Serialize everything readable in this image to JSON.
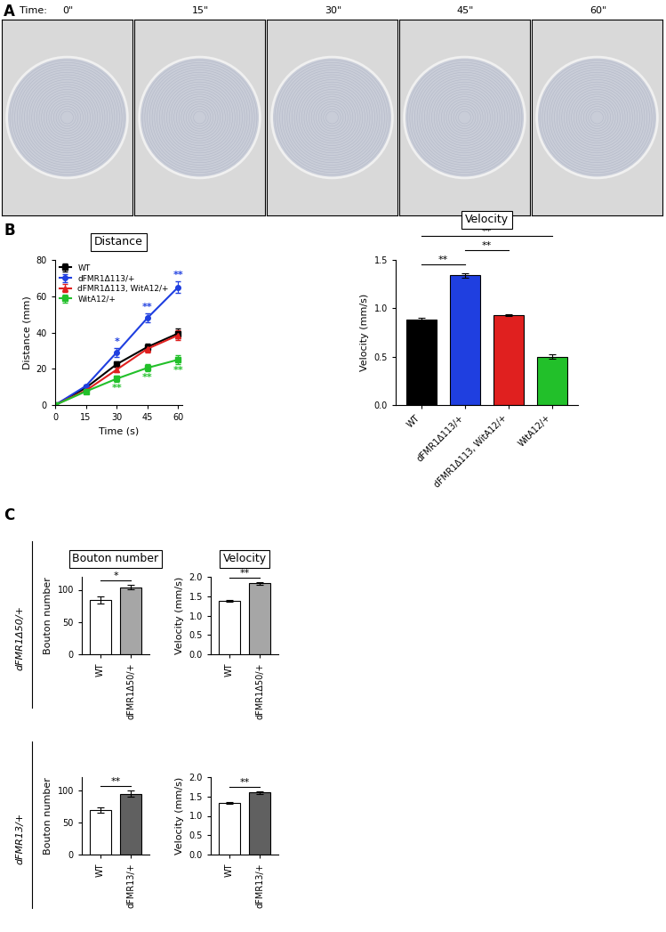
{
  "panel_labels": [
    "A",
    "B",
    "C"
  ],
  "panel_a": {
    "time_label": "Time:",
    "frames": [
      "0\"",
      "15\"",
      "30\"",
      "45\"",
      "60\""
    ]
  },
  "row_labels": [
    "dFMR1Δ50/+",
    "dFMR13/+"
  ],
  "chart_data": [
    {
      "type": "line",
      "title": "Distance",
      "xlabel": "Time (s)",
      "ylabel": "Distance (mm)",
      "x": [
        0,
        15,
        30,
        45,
        60
      ],
      "xlim": [
        0,
        62
      ],
      "xticks": [
        0,
        15,
        30,
        45,
        60
      ],
      "ylim": [
        0,
        80
      ],
      "yticks": [
        0,
        20,
        40,
        60,
        80
      ],
      "legend": "upper left",
      "series": [
        {
          "name": "WT",
          "color": "#000000",
          "marker": "s",
          "values": [
            0,
            9.5,
            22.5,
            32,
            39.5
          ],
          "errors": [
            0,
            0.8,
            1.5,
            2,
            2.5
          ],
          "significance": [
            null,
            null,
            null,
            null,
            null
          ]
        },
        {
          "name": "dFMR1Δ113/+",
          "color": "#1f3fe0",
          "marker": "o",
          "values": [
            0,
            10.5,
            29,
            48,
            65
          ],
          "errors": [
            0,
            1,
            2.5,
            2.5,
            3
          ],
          "significance": [
            null,
            null,
            "*",
            "**",
            "**"
          ]
        },
        {
          "name": "dFMR1Δ113, WitA12/+",
          "color": "#e0201f",
          "marker": "^",
          "values": [
            0,
            8,
            19.5,
            31,
            38.5
          ],
          "errors": [
            0,
            0.8,
            1.5,
            2,
            2.5
          ],
          "significance": [
            null,
            null,
            null,
            null,
            null
          ]
        },
        {
          "name": "WitA12/+",
          "color": "#22c02a",
          "marker": "s",
          "values": [
            0,
            7.5,
            14.5,
            20.5,
            25
          ],
          "errors": [
            0,
            0.8,
            1.5,
            2,
            2.5
          ],
          "significance": [
            null,
            null,
            "**",
            "**",
            "**"
          ]
        }
      ]
    },
    {
      "type": "bar",
      "title": "Velocity",
      "ylabel": "Velocity (mm/s)",
      "categories": [
        "WT",
        "dFMR1Δ113/+",
        "dFMR1Δ113, WitA12/+",
        "WitA12/+"
      ],
      "values": [
        0.88,
        1.34,
        0.93,
        0.5
      ],
      "errors": [
        0.02,
        0.02,
        0.01,
        0.02
      ],
      "colors": [
        "#000000",
        "#1f3fe0",
        "#e0201f",
        "#22c02a"
      ],
      "ylim": [
        0,
        1.5
      ],
      "yticks": [
        {
          "value": 0,
          "label": "0.0"
        },
        {
          "value": 0.5,
          "label": "0.5"
        },
        {
          "value": 1.0,
          "label": "1.0"
        },
        {
          "value": 1.5,
          "label": "1.5"
        }
      ],
      "comparisons": [
        {
          "from": 0,
          "to": 1,
          "text": "**"
        },
        {
          "from": 1,
          "to": 2,
          "text": "**"
        },
        {
          "from": 0,
          "to": 3,
          "text": "**"
        }
      ]
    },
    {
      "type": "bar",
      "title": "Bouton number",
      "ylabel": "Bouton number",
      "categories": [
        "WT",
        "dFMR1Δ50/+"
      ],
      "values": [
        84,
        104
      ],
      "errors": [
        6,
        3
      ],
      "colors": [
        "#ffffff",
        "#a6a6a6"
      ],
      "ylim": [
        0,
        120
      ],
      "yticks": [
        0,
        50,
        100
      ],
      "comparisons": [
        {
          "from": 0,
          "to": 1,
          "text": "*"
        }
      ]
    },
    {
      "type": "bar",
      "title": "Velocity",
      "ylabel": "Velocity (mm/s)",
      "categories": [
        "WT",
        "dFMR1Δ50/+"
      ],
      "values": [
        1.38,
        1.83
      ],
      "errors": [
        0.03,
        0.03
      ],
      "colors": [
        "#ffffff",
        "#a6a6a6"
      ],
      "ylim": [
        0,
        2.0
      ],
      "yticks": [
        {
          "value": 0,
          "label": "0.0"
        },
        {
          "value": 0.5,
          "label": "0.5"
        },
        {
          "value": 1.0,
          "label": "1.0"
        },
        {
          "value": 1.5,
          "label": "1.5"
        },
        {
          "value": 2.0,
          "label": "2.0"
        }
      ],
      "comparisons": [
        {
          "from": 0,
          "to": 1,
          "text": "**"
        }
      ]
    },
    {
      "type": "bar",
      "ylabel": "Bouton number",
      "categories": [
        "WT",
        "dFMR13/+"
      ],
      "values": [
        69,
        94
      ],
      "errors": [
        4,
        5
      ],
      "colors": [
        "#ffffff",
        "#606060"
      ],
      "ylim": [
        0,
        120
      ],
      "yticks": [
        0,
        50,
        100
      ],
      "comparisons": [
        {
          "from": 0,
          "to": 1,
          "text": "**"
        }
      ]
    },
    {
      "type": "bar",
      "ylabel": "Velocity (mm/s)",
      "categories": [
        "WT",
        "dFMR13/+"
      ],
      "values": [
        1.33,
        1.6
      ],
      "errors": [
        0.03,
        0.03
      ],
      "colors": [
        "#ffffff",
        "#606060"
      ],
      "ylim": [
        0,
        2.0
      ],
      "yticks": [
        {
          "value": 0,
          "label": "0.0"
        },
        {
          "value": 0.5,
          "label": "0.5"
        },
        {
          "value": 1.0,
          "label": "1.0"
        },
        {
          "value": 1.5,
          "label": "1.5"
        },
        {
          "value": 2.0,
          "label": "2.0"
        }
      ],
      "comparisons": [
        {
          "from": 0,
          "to": 1,
          "text": "**"
        }
      ]
    }
  ]
}
